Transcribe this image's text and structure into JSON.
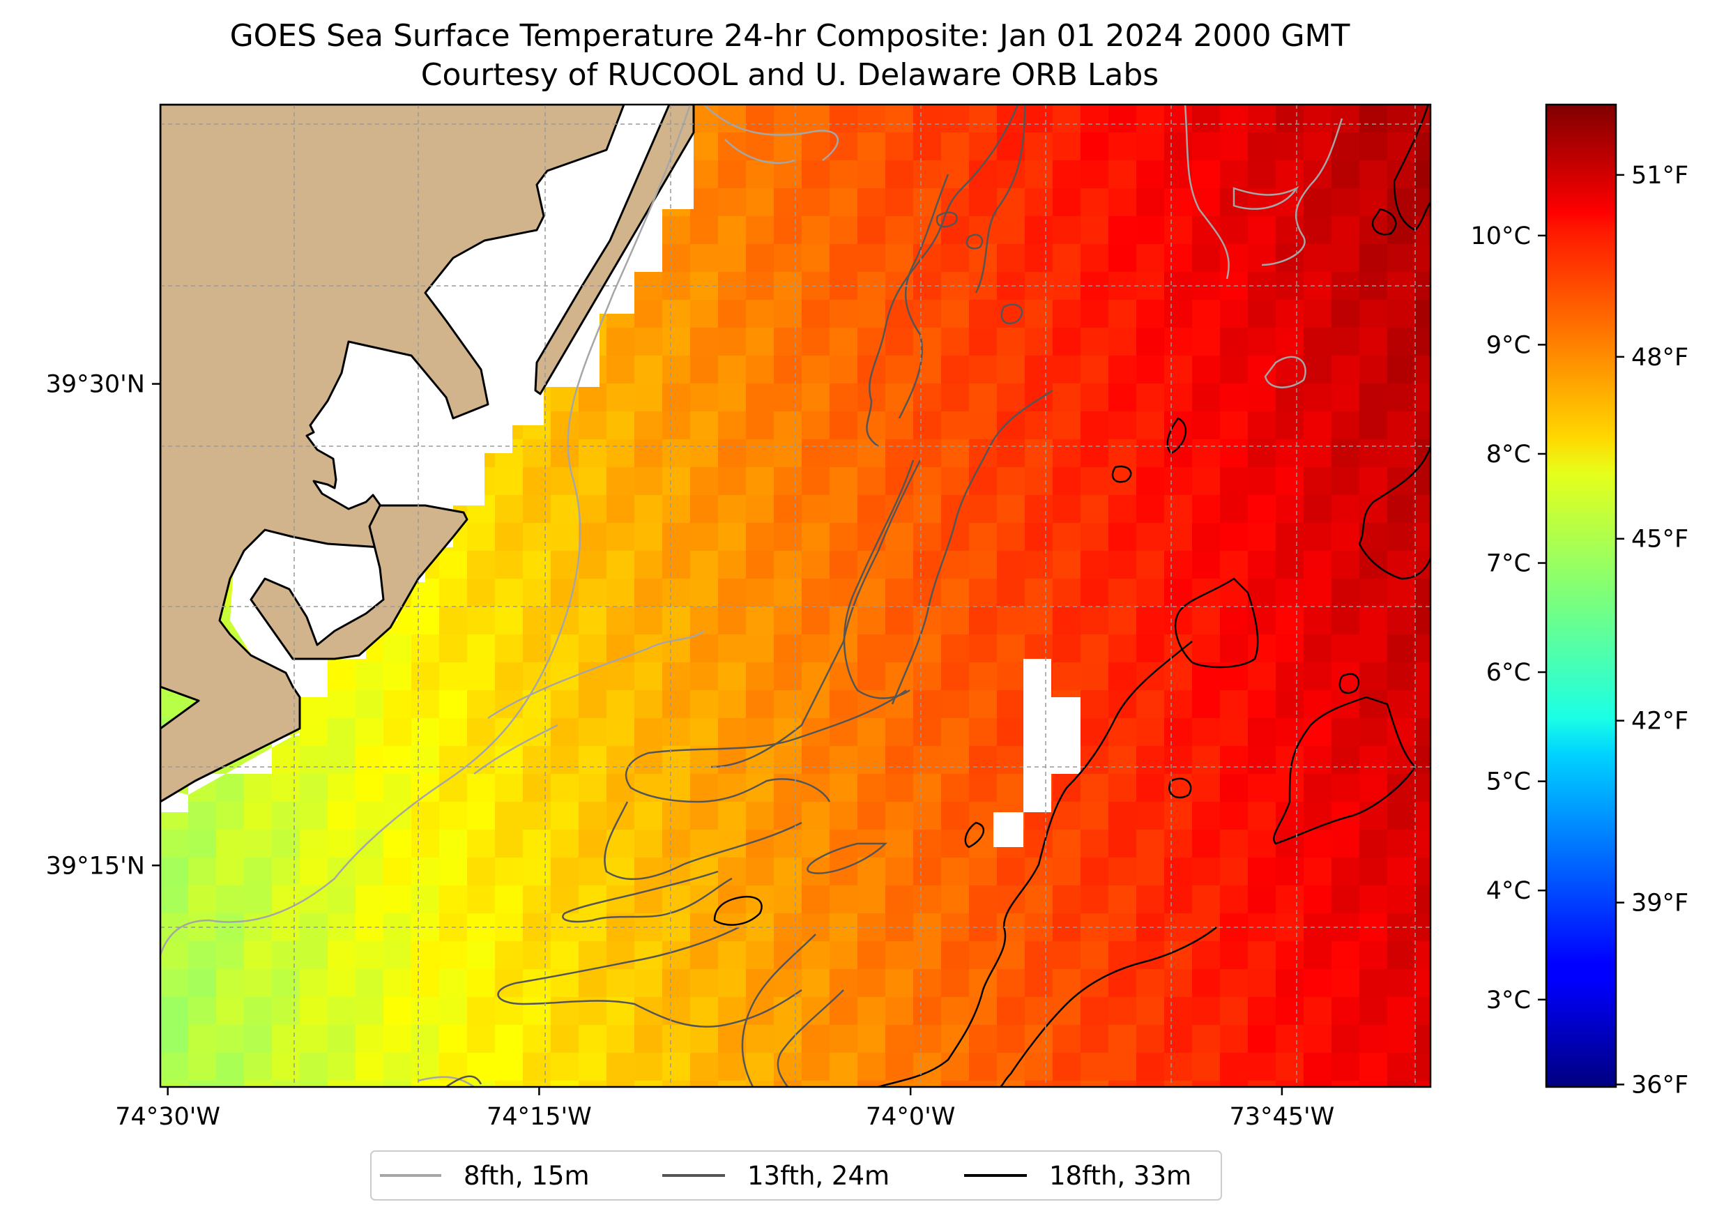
{
  "title": {
    "line1": "GOES Sea Surface Temperature 24-hr Composite: Jan 01 2024 2000 GMT",
    "line2": "Courtesy of RUCOOL and U. Delaware ORB Labs"
  },
  "map": {
    "lon_range": [
      -74.505,
      -73.65
    ],
    "lat_range": [
      39.135,
      39.645
    ],
    "x_ticks": [
      {
        "label": "74°30'W",
        "lon": -74.5
      },
      {
        "label": "74°15'W",
        "lon": -74.25
      },
      {
        "label": "74°0'W",
        "lon": -74.0
      },
      {
        "label": "73°45'W",
        "lon": -73.75
      }
    ],
    "y_ticks": [
      {
        "label": "39°30'N",
        "lat": 39.5
      },
      {
        "label": "39°15'N",
        "lat": 39.25
      }
    ],
    "colors": {
      "land": "#d2b48c",
      "coast": "#000000",
      "frame": "#000000",
      "grid": "#999999",
      "no_data": "#ffffff"
    }
  },
  "colorbar": {
    "colormap": "jet",
    "range_c": [
      2.2,
      11.2
    ],
    "celsius_ticks": [
      {
        "label": "3°C",
        "value": 3
      },
      {
        "label": "4°C",
        "value": 4
      },
      {
        "label": "5°C",
        "value": 5
      },
      {
        "label": "6°C",
        "value": 6
      },
      {
        "label": "7°C",
        "value": 7
      },
      {
        "label": "8°C",
        "value": 8
      },
      {
        "label": "9°C",
        "value": 9
      },
      {
        "label": "10°C",
        "value": 10
      }
    ],
    "fahrenheit_ticks": [
      {
        "label": "36°F",
        "value": 36
      },
      {
        "label": "39°F",
        "value": 39
      },
      {
        "label": "42°F",
        "value": 42
      },
      {
        "label": "45°F",
        "value": 45
      },
      {
        "label": "48°F",
        "value": 48
      },
      {
        "label": "51°F",
        "value": 51
      }
    ]
  },
  "legend": {
    "items": [
      {
        "label": "8fth, 15m",
        "color": "#a6a6a6"
      },
      {
        "label": "13fth, 24m",
        "color": "#555555"
      },
      {
        "label": "18fth, 33m",
        "color": "#000000"
      }
    ]
  }
}
